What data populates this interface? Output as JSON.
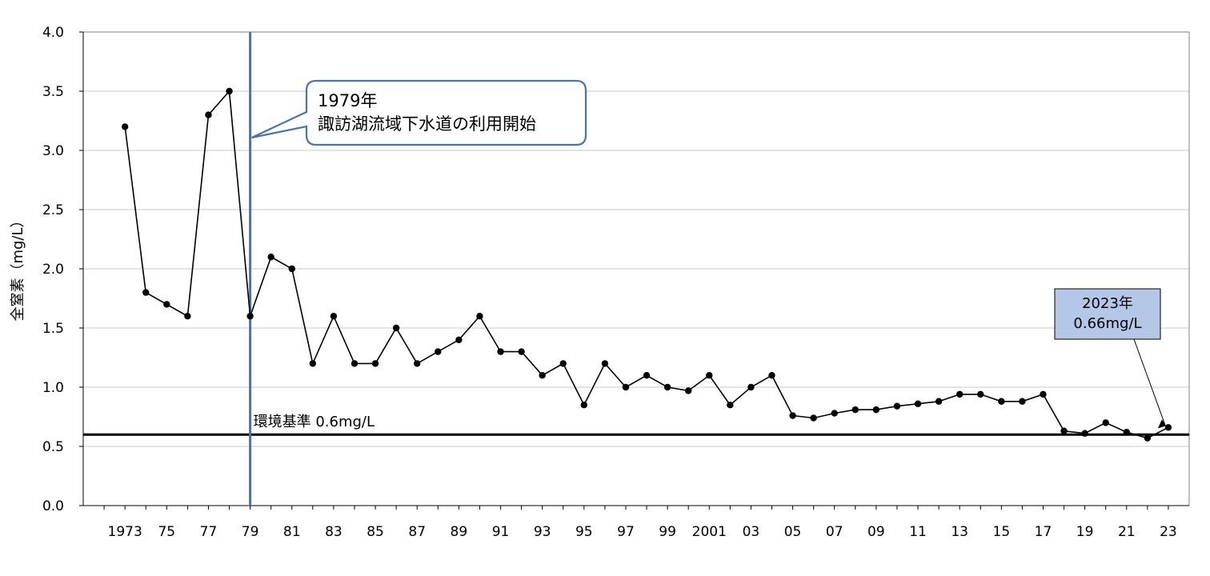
{
  "chart_data": {
    "type": "line",
    "ylabel": "全窒素（mg/L）",
    "ylim": [
      0,
      4
    ],
    "yticks": [
      "0.0",
      "0.5",
      "1.0",
      "1.5",
      "2.0",
      "2.5",
      "3.0",
      "3.5",
      "4.0"
    ],
    "grid": true,
    "xlim": [
      1971,
      2024
    ],
    "x_tick_values": [
      1973,
      1975,
      1977,
      1979,
      1981,
      1983,
      1985,
      1987,
      1989,
      1991,
      1993,
      1995,
      1997,
      1999,
      2001,
      2003,
      2005,
      2007,
      2009,
      2011,
      2013,
      2015,
      2017,
      2019,
      2021,
      2023
    ],
    "x_tick_labels": [
      "1973",
      "75",
      "77",
      "79",
      "81",
      "83",
      "85",
      "87",
      "89",
      "91",
      "93",
      "95",
      "97",
      "99",
      "2001",
      "03",
      "05",
      "07",
      "09",
      "11",
      "13",
      "15",
      "17",
      "19",
      "21",
      "23"
    ],
    "series": [
      {
        "x": [
          1973,
          1974,
          1975,
          1976,
          1977,
          1978,
          1979,
          1980,
          1981,
          1982,
          1983,
          1984,
          1985,
          1986,
          1987,
          1988,
          1989,
          1990,
          1991,
          1992,
          1993,
          1994,
          1995,
          1996,
          1997,
          1998,
          1999,
          2000,
          2001,
          2002,
          2003,
          2004,
          2005,
          2006,
          2007,
          2008,
          2009,
          2010,
          2011,
          2012,
          2013,
          2014,
          2015,
          2016,
          2017,
          2018,
          2019,
          2020,
          2021,
          2022,
          2023
        ],
        "values": [
          3.2,
          1.8,
          1.7,
          1.6,
          3.3,
          3.5,
          1.6,
          2.1,
          2.0,
          1.2,
          1.6,
          1.2,
          1.2,
          1.5,
          1.2,
          1.3,
          1.4,
          1.6,
          1.3,
          1.3,
          1.1,
          1.2,
          0.85,
          1.2,
          1.0,
          1.1,
          1.0,
          0.97,
          1.1,
          0.85,
          1.0,
          1.1,
          0.76,
          0.74,
          0.78,
          0.81,
          0.81,
          0.84,
          0.86,
          0.88,
          0.94,
          0.94,
          0.88,
          0.88,
          0.94,
          0.63,
          0.61,
          0.7,
          0.62,
          0.57,
          0.66
        ]
      }
    ],
    "standard": {
      "value": 0.6,
      "label": "環境基準 0.6mg/L"
    },
    "marker_line": {
      "x": 1979,
      "color": "#4a72ad"
    },
    "annotations": [
      {
        "id": "sewer",
        "lines": [
          "1979年",
          "諏訪湖流域下水道の利用開始"
        ],
        "border": "#4a72ad"
      },
      {
        "id": "latest",
        "lines": [
          "2023年",
          "0.66mg/L"
        ],
        "fill": "#b4c7e7",
        "points_to": 2023
      }
    ]
  }
}
